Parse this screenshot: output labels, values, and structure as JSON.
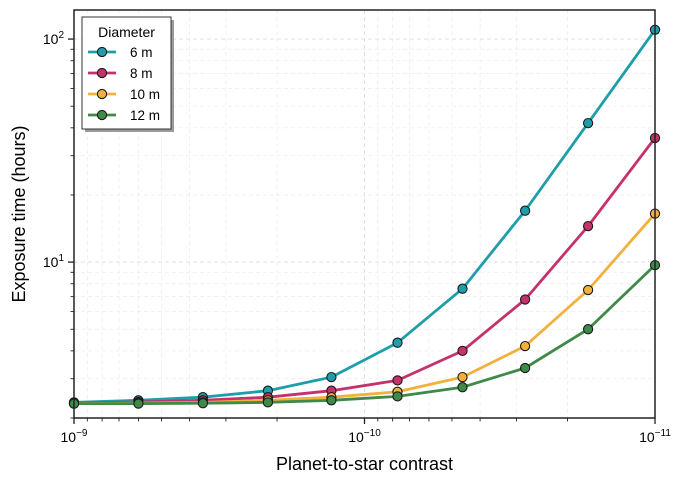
{
  "chart_data": {
    "type": "line",
    "xlabel": "Planet-to-star contrast",
    "ylabel": "Exposure time (hours)",
    "x_scale": "log",
    "y_scale": "log",
    "x_reversed": true,
    "xlim": [
      1e-09,
      1e-11
    ],
    "ylim": [
      2.0,
      135
    ],
    "grid": true,
    "x_tick_labels": [
      {
        "value": 1e-09,
        "base": "10",
        "exp": "−9"
      },
      {
        "value": 1e-10,
        "base": "10",
        "exp": "−10"
      },
      {
        "value": 1e-11,
        "base": "10",
        "exp": "−11"
      }
    ],
    "y_tick_labels": [
      {
        "value": 10,
        "base": "10",
        "exp": "1"
      },
      {
        "value": 100,
        "base": "10",
        "exp": "2"
      }
    ],
    "x": [
      1e-09,
      6e-10,
      3.6e-10,
      2.15e-10,
      1.3e-10,
      7.7e-11,
      4.6e-11,
      2.8e-11,
      1.7e-11,
      1e-11
    ],
    "legend": {
      "title": "Diameter",
      "placement": "top-left"
    },
    "series": [
      {
        "name": "6 m",
        "color": "#1f9eaa",
        "values": [
          2.35,
          2.4,
          2.48,
          2.65,
          3.05,
          4.35,
          7.6,
          17.0,
          42.0,
          110.0
        ]
      },
      {
        "name": "8 m",
        "color": "#c4316c",
        "values": [
          2.33,
          2.36,
          2.4,
          2.48,
          2.65,
          2.95,
          4.0,
          6.8,
          14.5,
          36.0
        ]
      },
      {
        "name": "10 m",
        "color": "#f2b03c",
        "values": [
          2.32,
          2.33,
          2.35,
          2.4,
          2.48,
          2.62,
          3.05,
          4.2,
          7.5,
          16.5
        ]
      },
      {
        "name": "12 m",
        "color": "#3f8a48",
        "values": [
          2.32,
          2.32,
          2.33,
          2.35,
          2.4,
          2.5,
          2.75,
          3.35,
          5.0,
          9.7
        ]
      }
    ]
  }
}
